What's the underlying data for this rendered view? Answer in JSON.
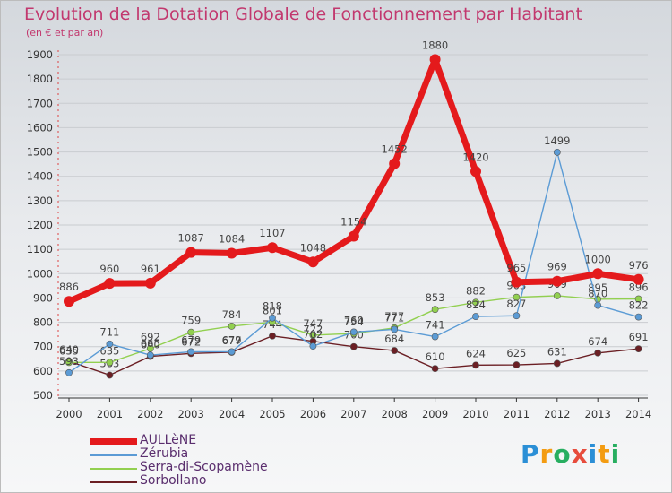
{
  "title": "Evolution de la Dotation Globale de Fonctionnement par Habitant",
  "subtitle": "(en € et par an)",
  "brand": {
    "letters": [
      "P",
      "r",
      "o",
      "x",
      "i",
      "t",
      "i"
    ],
    "colors": [
      "#2b8fd6",
      "#f39c12",
      "#27ae60",
      "#e74c3c",
      "#2b8fd6",
      "#f39c12",
      "#27ae60"
    ]
  },
  "chart_data": {
    "type": "line",
    "title": "Evolution de la Dotation Globale de Fonctionnement par Habitant",
    "subtitle": "(en € et par an)",
    "xlabel": "",
    "ylabel": "",
    "ylim": [
      500,
      1900
    ],
    "yticks": [
      500,
      600,
      700,
      800,
      900,
      1000,
      1100,
      1200,
      1300,
      1400,
      1500,
      1600,
      1700,
      1800,
      1900
    ],
    "grid": true,
    "legend_position": "bottom-left",
    "x": [
      "2000",
      "2001",
      "2002",
      "2003",
      "2004",
      "2005",
      "2006",
      "2007",
      "2008",
      "2009",
      "2010",
      "2011",
      "2012",
      "2013",
      "2014"
    ],
    "series": [
      {
        "name": "Sorbollano",
        "color": "#6b1f24",
        "values": [
          640,
          583,
          660,
          672,
          677,
          744,
          722,
          700,
          684,
          610,
          624,
          625,
          631,
          674,
          691
        ]
      },
      {
        "name": "Serra-di-Scopamène",
        "color": "#92d050",
        "values": [
          635,
          635,
          692,
          759,
          784,
          801,
          747,
          754,
          777,
          853,
          882,
          903,
          909,
          895,
          896
        ]
      },
      {
        "name": "Zérubia",
        "color": "#5b9bd5",
        "values": [
          593,
          711,
          665,
          679,
          679,
          818,
          702,
          760,
          771,
          741,
          824,
          827,
          1499,
          870,
          822
        ]
      },
      {
        "name": "AULLèNE",
        "color": "#e41a1c",
        "values": [
          886,
          960,
          961,
          1087,
          1084,
          1107,
          1048,
          1154,
          1452,
          1880,
          1420,
          965,
          969,
          1000,
          976
        ]
      }
    ],
    "legend_order": [
      "AULLèNE",
      "Zérubia",
      "Serra-di-Scopamène",
      "Sorbollano"
    ]
  }
}
